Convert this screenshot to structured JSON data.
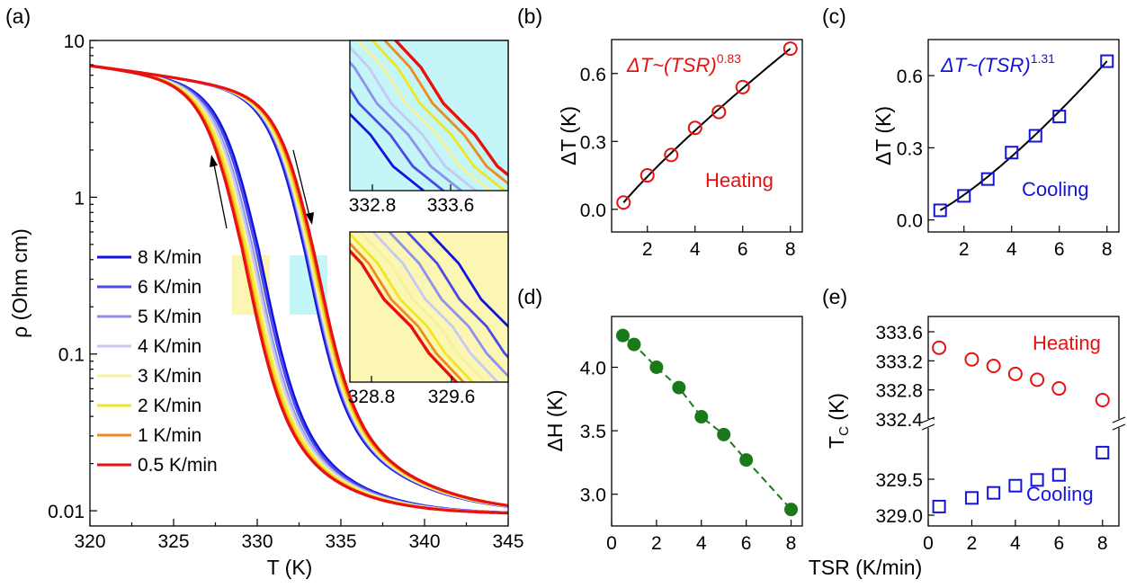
{
  "figure": {
    "panel_labels": [
      "(a)",
      "(b)",
      "(c)",
      "(d)",
      "(e)"
    ],
    "shared_xlabel": "TSR (K/min)"
  },
  "chart_data": [
    {
      "panel": "(a)",
      "type": "line",
      "xlabel": "T (K)",
      "ylabel": "ρ (Ohm cm)",
      "xlim": [
        320,
        345
      ],
      "ylim": [
        0.008,
        10
      ],
      "yscale": "log",
      "xticks": [
        "320",
        "325",
        "330",
        "335",
        "340",
        "345"
      ],
      "yticks": [
        "0.01",
        "0.1",
        "1",
        "10"
      ],
      "legend_position": "bottom-left",
      "series": [
        {
          "name": "8 K/min",
          "color": "#1212e0",
          "Tc_cool": 330.1,
          "Tc_heat": 332.9
        },
        {
          "name": "6 K/min",
          "color": "#4a4ae6",
          "Tc_cool": 329.95,
          "Tc_heat": 333.0
        },
        {
          "name": "5 K/min",
          "color": "#8f8ff0",
          "Tc_cool": 329.75,
          "Tc_heat": 333.05
        },
        {
          "name": "4 K/min",
          "color": "#c8c8f5",
          "Tc_cool": 329.65,
          "Tc_heat": 333.1
        },
        {
          "name": "3 K/min",
          "color": "#f7f29a",
          "Tc_cool": 329.5,
          "Tc_heat": 333.15
        },
        {
          "name": "2 K/min",
          "color": "#f2e61e",
          "Tc_cool": 329.35,
          "Tc_heat": 333.25
        },
        {
          "name": "1 K/min",
          "color": "#f08a1a",
          "Tc_cool": 329.2,
          "Tc_heat": 333.35
        },
        {
          "name": "0.5 K/min",
          "color": "#e81010",
          "Tc_cool": 329.1,
          "Tc_heat": 333.45
        }
      ],
      "insets": [
        {
          "xticks": [
            "332.8",
            "333.6"
          ],
          "background": "#c4f6f8",
          "branch": "heating"
        },
        {
          "xticks": [
            "328.8",
            "329.6"
          ],
          "background": "#fbf6b4",
          "branch": "cooling"
        }
      ]
    },
    {
      "panel": "(b)",
      "type": "scatter",
      "xlabel": "",
      "ylabel": "ΔT (K)",
      "annotation": "ΔT~(TSR)",
      "exponent": "0.83",
      "label": "Heating",
      "color": "#e81010",
      "marker": "open-circle",
      "xlim": [
        0.5,
        8.5
      ],
      "ylim": [
        -0.1,
        0.75
      ],
      "xticks": [
        "2",
        "4",
        "6",
        "8"
      ],
      "yticks": [
        "0.0",
        "0.3",
        "0.6"
      ],
      "x": [
        1,
        2,
        3,
        4,
        5,
        6,
        8
      ],
      "y": [
        0.03,
        0.15,
        0.24,
        0.36,
        0.43,
        0.54,
        0.71
      ]
    },
    {
      "panel": "(c)",
      "type": "scatter",
      "xlabel": "",
      "ylabel": "ΔT (K)",
      "annotation": "ΔT~(TSR)",
      "exponent": "1.31",
      "label": "Cooling",
      "color": "#1414d8",
      "marker": "open-square",
      "xlim": [
        0.5,
        8.5
      ],
      "ylim": [
        -0.05,
        0.75
      ],
      "xticks": [
        "2",
        "4",
        "6",
        "8"
      ],
      "yticks": [
        "0.0",
        "0.3",
        "0.6"
      ],
      "x": [
        1,
        2,
        3,
        4,
        5,
        6,
        8
      ],
      "y": [
        0.04,
        0.1,
        0.17,
        0.28,
        0.35,
        0.43,
        0.66
      ]
    },
    {
      "panel": "(d)",
      "type": "line",
      "xlabel": "",
      "ylabel": "ΔH (K)",
      "color": "#1a7a1a",
      "marker": "filled-circle",
      "xlim": [
        0,
        8.5
      ],
      "ylim": [
        2.75,
        4.4
      ],
      "xticks": [
        "0",
        "2",
        "4",
        "6",
        "8"
      ],
      "yticks": [
        "3.0",
        "3.5",
        "4.0"
      ],
      "x": [
        0.5,
        1,
        2,
        3,
        4,
        5,
        6,
        8
      ],
      "y": [
        4.25,
        4.18,
        4.0,
        3.84,
        3.61,
        3.47,
        3.27,
        2.88
      ]
    },
    {
      "panel": "(e)",
      "type": "scatter",
      "xlabel": "",
      "ylabel": "TC (K)",
      "ylabel_main": "T",
      "ylabel_sub": "C",
      "ylabel_unit": " (K)",
      "xlim": [
        0,
        9
      ],
      "xticks": [
        "0",
        "2",
        "4",
        "6",
        "8"
      ],
      "yticks": [
        "329.0",
        "329.5",
        "332.4",
        "332.8",
        "333.2",
        "333.6"
      ],
      "series": [
        {
          "name": "Heating",
          "color": "#e81010",
          "marker": "open-circle",
          "x": [
            0.5,
            2,
            3,
            4,
            5,
            6,
            8
          ],
          "y": [
            333.38,
            333.22,
            333.13,
            333.02,
            332.94,
            332.82,
            332.66
          ]
        },
        {
          "name": "Cooling",
          "color": "#1414d8",
          "marker": "open-square",
          "x": [
            0.5,
            2,
            3,
            4,
            5,
            6,
            8
          ],
          "y": [
            329.12,
            329.24,
            329.31,
            329.41,
            329.49,
            329.56,
            329.87
          ]
        }
      ]
    }
  ]
}
